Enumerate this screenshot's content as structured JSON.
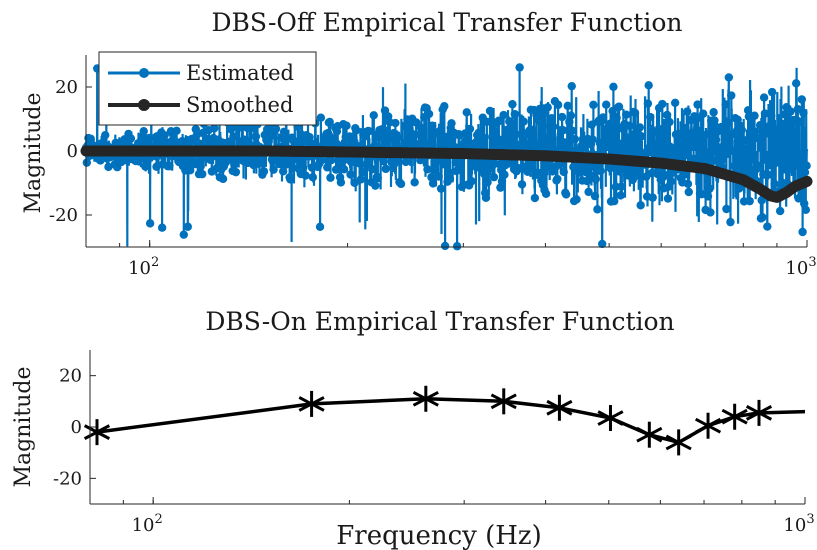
{
  "colors": {
    "estimated": "#0072BD",
    "smoothed": "#262626",
    "dbs_on": "#000000",
    "axis": "#262626"
  },
  "chart_data": [
    {
      "type": "line",
      "title": "DBS-Off Empirical Transfer Function",
      "xlabel": "",
      "ylabel": "Magnitude",
      "xscale": "log",
      "xlim": [
        80,
        1000
      ],
      "ylim": [
        -30,
        30
      ],
      "yticks": [
        -20,
        0,
        20
      ],
      "xticks": [
        {
          "value": 100,
          "base": "10",
          "exp": "2"
        },
        {
          "value": 1000,
          "base": "10",
          "exp": "3"
        }
      ],
      "legend": {
        "placement": "top-left"
      },
      "grid": false,
      "series": [
        {
          "name": "Estimated",
          "style": "stem-dense",
          "note_count": 1800,
          "amplitude_range": [
            -30,
            30
          ]
        },
        {
          "name": "Smoothed",
          "x": [
            80,
            100,
            150,
            200,
            300,
            400,
            500,
            600,
            700,
            800,
            850,
            880,
            900,
            930,
            960,
            1000
          ],
          "y": [
            0,
            0,
            0,
            -0.3,
            -0.8,
            -1.5,
            -2.5,
            -3.8,
            -5.5,
            -9,
            -12,
            -14,
            -14.5,
            -13,
            -11,
            -9.5
          ]
        }
      ]
    },
    {
      "type": "line",
      "title": "DBS-On Empirical Transfer Function",
      "xlabel": "Frequency (Hz)",
      "ylabel": "Magnitude",
      "xscale": "log",
      "xlim": [
        80,
        1000
      ],
      "ylim": [
        -30,
        30
      ],
      "yticks": [
        -20,
        0,
        20
      ],
      "xticks": [
        {
          "value": 100,
          "base": "10",
          "exp": "2"
        },
        {
          "value": 1000,
          "base": "10",
          "exp": "3"
        }
      ],
      "grid": false,
      "series": [
        {
          "name": "",
          "x": [
            82,
            175,
            262,
            345,
            420,
            503,
            577,
            640,
            710,
            780,
            850,
            1000
          ],
          "y": [
            -2,
            9,
            11,
            10,
            7.5,
            3.5,
            -3,
            -6,
            0.5,
            4,
            5.5,
            6
          ]
        }
      ]
    }
  ]
}
